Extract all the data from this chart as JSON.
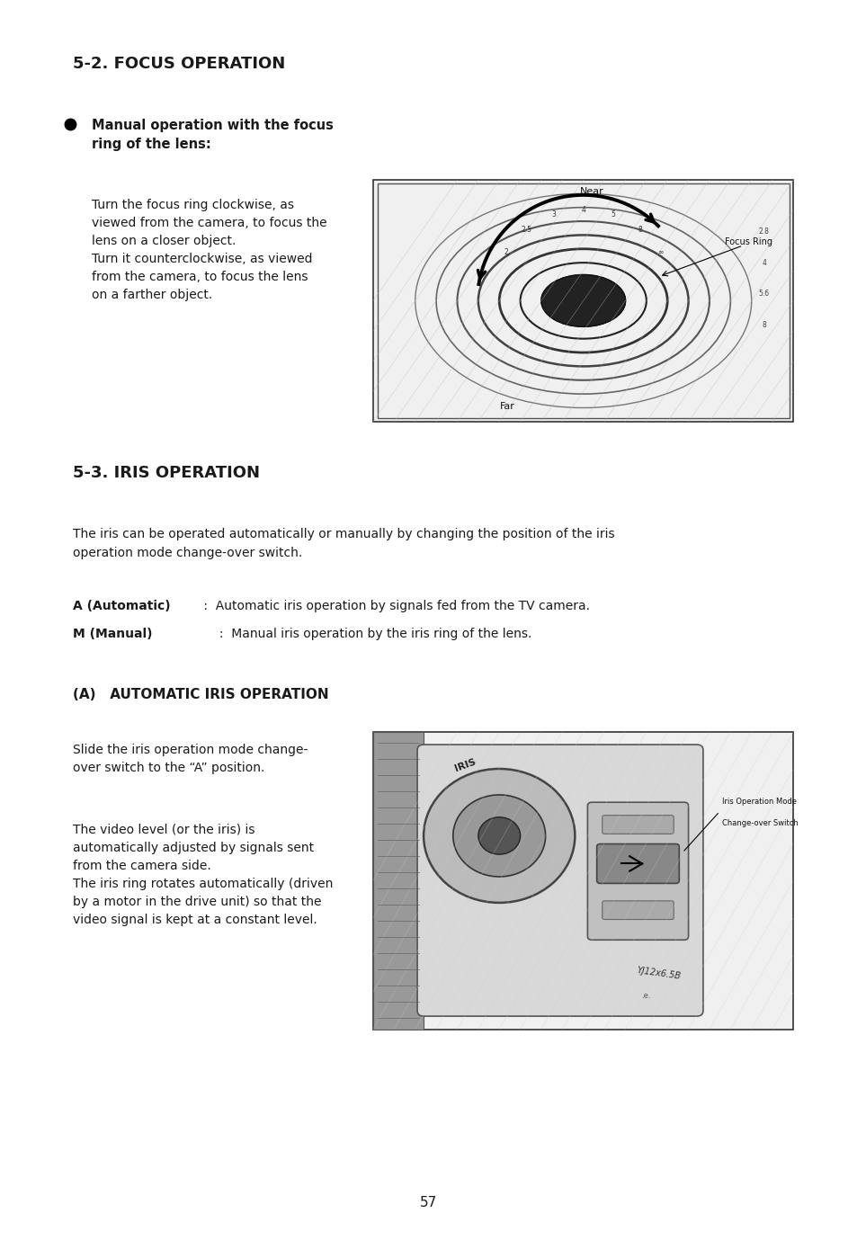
{
  "bg_color": "#ffffff",
  "page_number": "57",
  "section1_title": "5-2. FOCUS OPERATION",
  "bullet1_bold": "Manual operation with the focus\nring of the lens:",
  "bullet1_text": "Turn the focus ring clockwise, as\nviewed from the camera, to focus the\nlens on a closer object.\nTurn it counterclockwise, as viewed\nfrom the camera, to focus the lens\non a farther object.",
  "section2_title": "5-3. IRIS OPERATION",
  "section2_intro": "The iris can be operated automatically or manually by changing the position of the iris\noperation mode change-over switch.",
  "auto_label_bold": "A (Automatic)",
  "auto_label_text": " :  Automatic iris operation by signals fed from the TV camera.",
  "manual_label_bold": "M (Manual)",
  "manual_label_text": "     :  Manual iris operation by the iris ring of the lens.",
  "subsection_title": "(A)   AUTOMATIC IRIS OPERATION",
  "slide_text": "Slide the iris operation mode change-\nover switch to the “A” position.",
  "video_text": "The video level (or the iris) is\nautomatically adjusted by signals sent\nfrom the camera side.\nThe iris ring rotates automatically (driven\nby a motor in the drive unit) so that the\nvideo signal is kept at a constant level."
}
